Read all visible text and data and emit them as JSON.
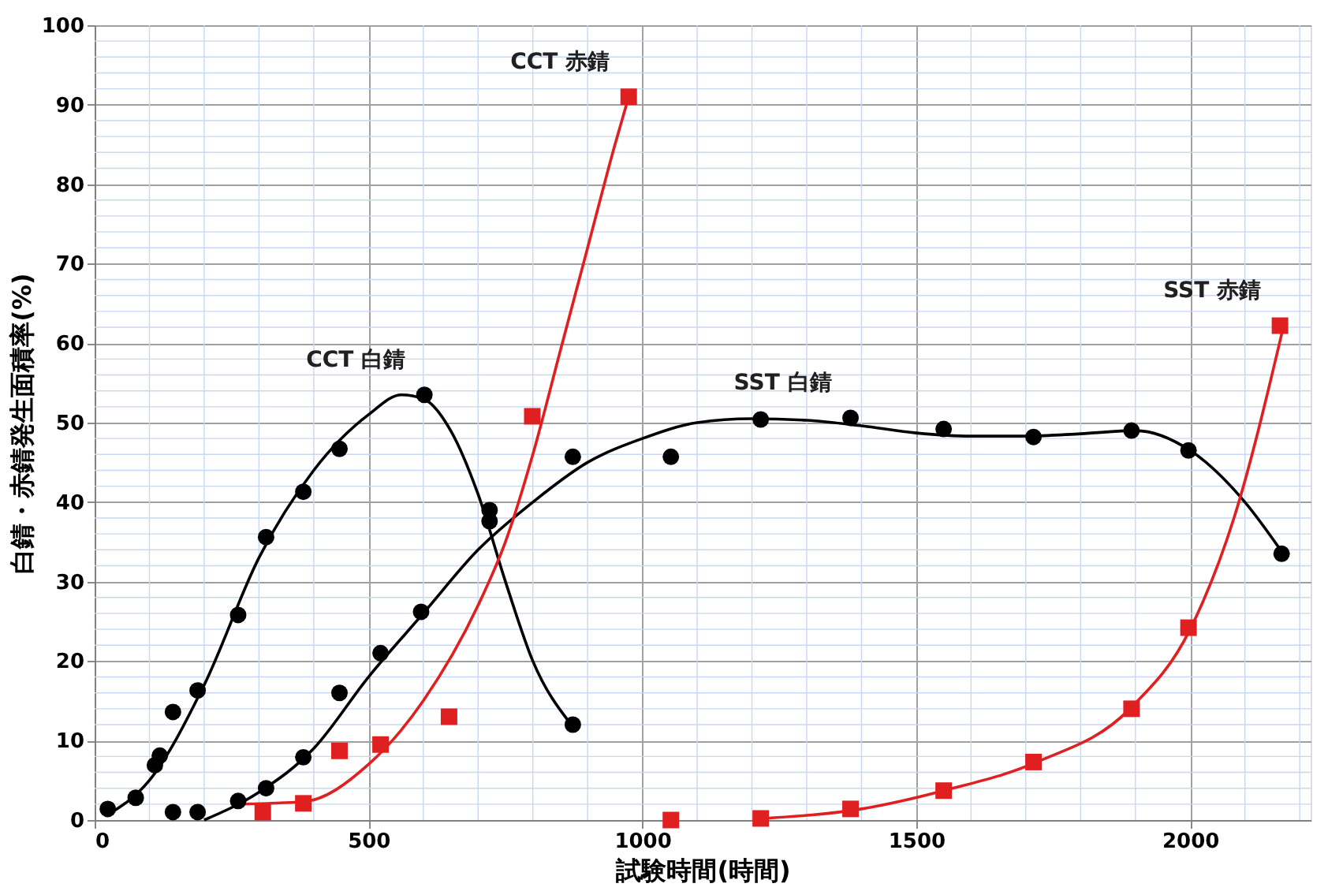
{
  "chart_data": {
    "type": "scatter",
    "xlabel": "試験時間(時間)",
    "ylabel": "白錆・赤錆発生面積率(%)",
    "xlim": [
      0,
      2220
    ],
    "ylim": [
      0,
      100
    ],
    "xticks": [
      0,
      500,
      1000,
      1500,
      2000
    ],
    "yticks": [
      0,
      10,
      20,
      30,
      40,
      50,
      60,
      70,
      80,
      90,
      100
    ],
    "grid": true,
    "series": [
      {
        "name": "CCT 白錆",
        "marker": "circle",
        "color": "#000000",
        "x": [
          24,
          75,
          110,
          119,
          143,
          188,
          262,
          313,
          381,
          447,
          602,
          721,
          873
        ],
        "values": [
          1.4,
          2.8,
          6.9,
          8.1,
          13.6,
          16.3,
          25.8,
          35.6,
          41.3,
          46.7,
          53.5,
          39,
          12
        ]
      },
      {
        "name": "SST 白錆",
        "marker": "circle",
        "color": "#000000",
        "x": [
          143,
          188,
          262,
          313,
          381,
          447,
          522,
          596,
          721,
          873,
          1052,
          1216,
          1380,
          1550,
          1714,
          1893,
          1997,
          2167
        ],
        "values": [
          1,
          1,
          2.4,
          4,
          7.9,
          16,
          21,
          26.2,
          37.6,
          45.7,
          45.7,
          50.4,
          50.6,
          49.2,
          48.2,
          49,
          46.5,
          33.5
        ]
      },
      {
        "name": "CCT 赤錆",
        "marker": "square",
        "color": "#e02020",
        "x": [
          307,
          381,
          447,
          522,
          647,
          799,
          975
        ],
        "values": [
          1,
          2.1,
          8.7,
          9.5,
          13,
          50.8,
          91
        ]
      },
      {
        "name": "SST 赤錆",
        "marker": "square",
        "color": "#e02020",
        "x": [
          1052,
          1216,
          1380,
          1550,
          1714,
          1893,
          1997,
          2164
        ],
        "values": [
          0,
          0.2,
          1.4,
          3.7,
          7.3,
          14,
          24.2,
          62.2
        ]
      },
      {
        "type": "line",
        "color": "#000000",
        "x": [
          20,
          100,
          200,
          300,
          400,
          500,
          560,
          600,
          650,
          700,
          750,
          800,
          870
        ],
        "values": [
          0.5,
          5,
          17,
          33,
          44,
          51,
          53.5,
          53,
          49,
          41,
          30,
          20,
          12
        ]
      },
      {
        "type": "line",
        "color": "#000000",
        "x": [
          200,
          300,
          400,
          500,
          600,
          700,
          800,
          900,
          1000,
          1100,
          1200,
          1300,
          1400,
          1500,
          1600,
          1700,
          1800,
          1900,
          2000,
          2100,
          2170
        ],
        "values": [
          0,
          3.5,
          9,
          18,
          26,
          34,
          40,
          45,
          48,
          50,
          50.5,
          50.3,
          49.6,
          48.7,
          48.3,
          48.3,
          48.6,
          49,
          46.5,
          40,
          33.5
        ]
      },
      {
        "type": "line",
        "color": "#e02020",
        "x": [
          262,
          381,
          500,
          600,
          700,
          750,
          800,
          850,
          900,
          950,
          975
        ],
        "values": [
          2,
          2.3,
          7,
          15,
          27,
          35,
          46,
          59,
          72,
          85,
          91
        ]
      },
      {
        "type": "line",
        "color": "#e02020",
        "x": [
          1220,
          1400,
          1550,
          1720,
          1890,
          2000,
          2080,
          2170
        ],
        "values": [
          0.2,
          1.4,
          3.7,
          7.3,
          14,
          24,
          38,
          62
        ]
      }
    ]
  }
}
